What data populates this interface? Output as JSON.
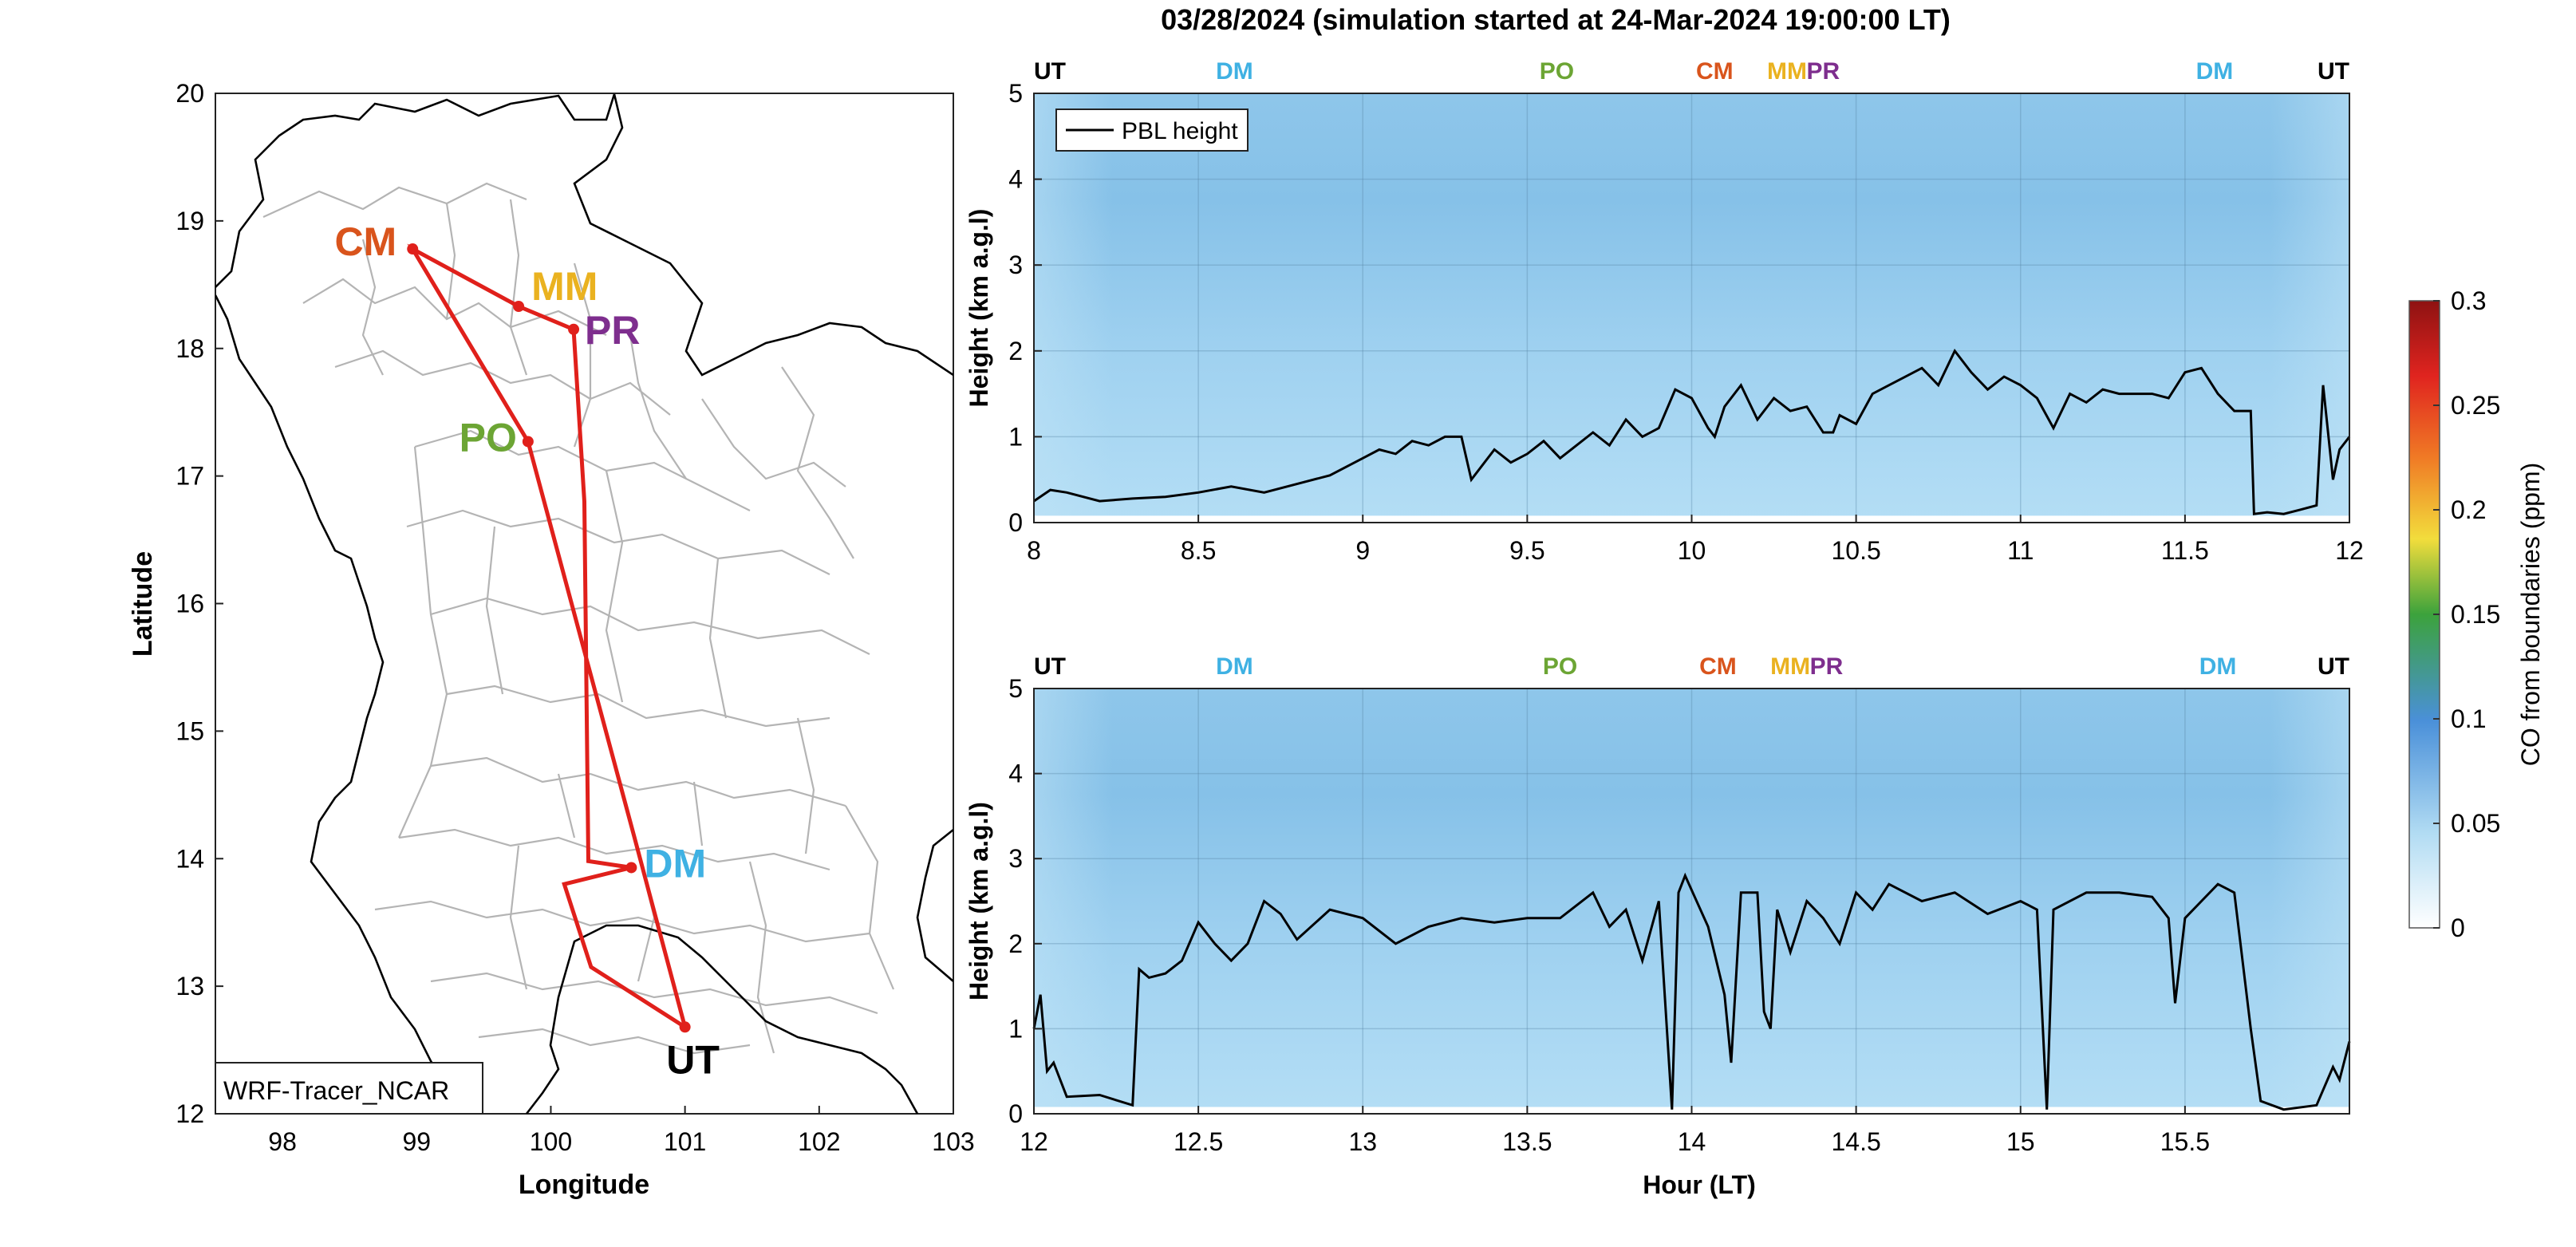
{
  "figure": {
    "title": "03/28/2024 (simulation started at 24-Mar-2024 19:00:00 LT)",
    "watermark": "WRF-Tracer_NCAR"
  },
  "colors": {
    "route": "#e0201b",
    "UT": "#000000",
    "DM": "#3fb1e3",
    "PO": "#6ca534",
    "CM": "#d9541c",
    "MM": "#eab220",
    "PR": "#7e2e8e",
    "pbl": "#000000",
    "field_bg": "#a9d8f2",
    "field_top": "#7fbde6",
    "field_low": "#b6e0f5"
  },
  "chart_data": [
    {
      "type": "scatter",
      "id": "map",
      "xlabel": "Longitude",
      "ylabel": "Latitude",
      "xlim": [
        97.5,
        103
      ],
      "ylim": [
        12,
        20
      ],
      "xticks": [
        98,
        99,
        100,
        101,
        102,
        103
      ],
      "yticks": [
        12,
        13,
        14,
        15,
        16,
        17,
        18,
        19,
        20
      ],
      "grid": false,
      "stations": [
        {
          "label": "CM",
          "lon": 98.97,
          "lat": 18.78
        },
        {
          "label": "MM",
          "lon": 99.76,
          "lat": 18.33
        },
        {
          "label": "PR",
          "lon": 100.17,
          "lat": 18.15
        },
        {
          "label": "PO",
          "lon": 99.83,
          "lat": 17.27
        },
        {
          "label": "DM",
          "lon": 100.6,
          "lat": 13.93
        },
        {
          "label": "UT",
          "lon": 101.0,
          "lat": 12.68
        }
      ],
      "route": [
        {
          "lon": 101.0,
          "lat": 12.68
        },
        {
          "lon": 100.62,
          "lat": 14.18
        },
        {
          "lon": 99.83,
          "lat": 17.27
        },
        {
          "lon": 98.97,
          "lat": 18.78
        },
        {
          "lon": 99.76,
          "lat": 18.33
        },
        {
          "lon": 100.17,
          "lat": 18.15
        },
        {
          "lon": 100.25,
          "lat": 16.8
        },
        {
          "lon": 100.28,
          "lat": 13.98
        },
        {
          "lon": 100.6,
          "lat": 13.93
        },
        {
          "lon": 100.1,
          "lat": 13.8
        },
        {
          "lon": 100.3,
          "lat": 13.15
        },
        {
          "lon": 101.0,
          "lat": 12.68
        }
      ]
    },
    {
      "type": "heatmap",
      "id": "profile-1",
      "xlabel": "",
      "ylabel": "Height (km a.g.l)",
      "xlim": [
        8,
        12
      ],
      "ylim": [
        0,
        5
      ],
      "xticks": [
        8,
        8.5,
        9,
        9.5,
        10,
        10.5,
        11,
        11.5,
        12
      ],
      "xtick_labels": [
        "8",
        "8.5",
        "9",
        "9.5",
        "10",
        "10.5",
        "11",
        "11.5",
        "12"
      ],
      "yticks": [
        0,
        1,
        2,
        3,
        4,
        5
      ],
      "legend": {
        "label": "PBL height",
        "position": "top-left"
      },
      "site_markers": [
        {
          "label": "UT",
          "x": 8.0
        },
        {
          "label": "DM",
          "x": 8.61
        },
        {
          "label": "PO",
          "x": 9.59
        },
        {
          "label": "CM",
          "x": 10.07
        },
        {
          "label": "MM",
          "x": 10.29
        },
        {
          "label": "PR",
          "x": 10.4
        },
        {
          "label": "DM",
          "x": 11.59
        },
        {
          "label": "UT",
          "x": 12.0
        }
      ],
      "series": [
        {
          "x": [
            8.0,
            8.05,
            8.1,
            8.2,
            8.3,
            8.4,
            8.5,
            8.6,
            8.7,
            8.8,
            8.9,
            9.0,
            9.05,
            9.1,
            9.15,
            9.2,
            9.25,
            9.3,
            9.33,
            9.4,
            9.45,
            9.5,
            9.55,
            9.6,
            9.65,
            9.7,
            9.75,
            9.8,
            9.85,
            9.9,
            9.95,
            10.0,
            10.05,
            10.07,
            10.1,
            10.15,
            10.2,
            10.25,
            10.3,
            10.35,
            10.4,
            10.43,
            10.45,
            10.5,
            10.55,
            10.6,
            10.65,
            10.7,
            10.75,
            10.8,
            10.85,
            10.9,
            10.95,
            11.0,
            11.05,
            11.1,
            11.15,
            11.2,
            11.25,
            11.3,
            11.4,
            11.45,
            11.5,
            11.55,
            11.6,
            11.65,
            11.7,
            11.71,
            11.75,
            11.8,
            11.85,
            11.9,
            11.92,
            11.95,
            11.97,
            12.0
          ],
          "y": [
            0.25,
            0.38,
            0.35,
            0.25,
            0.28,
            0.3,
            0.35,
            0.42,
            0.35,
            0.45,
            0.55,
            0.75,
            0.85,
            0.8,
            0.95,
            0.9,
            1.0,
            1.0,
            0.5,
            0.85,
            0.7,
            0.8,
            0.95,
            0.75,
            0.9,
            1.05,
            0.9,
            1.2,
            1.0,
            1.1,
            1.55,
            1.45,
            1.1,
            1.0,
            1.35,
            1.6,
            1.2,
            1.45,
            1.3,
            1.35,
            1.05,
            1.05,
            1.25,
            1.15,
            1.5,
            1.6,
            1.7,
            1.8,
            1.6,
            2.0,
            1.75,
            1.55,
            1.7,
            1.6,
            1.45,
            1.1,
            1.5,
            1.4,
            1.55,
            1.5,
            1.5,
            1.45,
            1.75,
            1.8,
            1.5,
            1.3,
            1.3,
            0.1,
            0.12,
            0.1,
            0.15,
            0.2,
            1.6,
            0.5,
            0.85,
            1.0
          ]
        }
      ]
    },
    {
      "type": "heatmap",
      "id": "profile-2",
      "xlabel": "Hour (LT)",
      "ylabel": "Height (km a.g.l)",
      "xlim": [
        12,
        16
      ],
      "ylim": [
        0,
        5
      ],
      "xticks": [
        12,
        12.5,
        13,
        13.5,
        14,
        14.5,
        15,
        15.5
      ],
      "xtick_labels": [
        "12",
        "12.5",
        "13",
        "13.5",
        "14",
        "14.5",
        "15",
        "15.5"
      ],
      "yticks": [
        0,
        1,
        2,
        3,
        4,
        5
      ],
      "site_markers": [
        {
          "label": "UT",
          "x": 12.0
        },
        {
          "label": "DM",
          "x": 12.61
        },
        {
          "label": "PO",
          "x": 13.6
        },
        {
          "label": "CM",
          "x": 14.08
        },
        {
          "label": "MM",
          "x": 14.3
        },
        {
          "label": "PR",
          "x": 14.41
        },
        {
          "label": "DM",
          "x": 15.6
        },
        {
          "label": "UT",
          "x": 16.0
        }
      ],
      "series": [
        {
          "x": [
            12.0,
            12.02,
            12.04,
            12.06,
            12.1,
            12.2,
            12.3,
            12.32,
            12.35,
            12.4,
            12.45,
            12.5,
            12.55,
            12.6,
            12.65,
            12.7,
            12.75,
            12.8,
            12.9,
            13.0,
            13.1,
            13.2,
            13.3,
            13.4,
            13.5,
            13.6,
            13.7,
            13.75,
            13.8,
            13.85,
            13.9,
            13.94,
            13.96,
            13.98,
            14.05,
            14.1,
            14.12,
            14.15,
            14.2,
            14.22,
            14.24,
            14.26,
            14.3,
            14.35,
            14.4,
            14.45,
            14.5,
            14.55,
            14.6,
            14.7,
            14.8,
            14.9,
            15.0,
            15.05,
            15.08,
            15.1,
            15.2,
            15.3,
            15.4,
            15.45,
            15.47,
            15.5,
            15.55,
            15.6,
            15.65,
            15.7,
            15.73,
            15.8,
            15.9,
            15.95,
            15.97,
            16.0
          ],
          "y": [
            1.0,
            1.4,
            0.5,
            0.6,
            0.2,
            0.22,
            0.1,
            1.7,
            1.6,
            1.65,
            1.8,
            2.25,
            2.0,
            1.8,
            2.0,
            2.5,
            2.35,
            2.05,
            2.4,
            2.3,
            2.0,
            2.2,
            2.3,
            2.25,
            2.3,
            2.3,
            2.6,
            2.2,
            2.4,
            1.8,
            2.5,
            0.05,
            2.6,
            2.8,
            2.2,
            1.4,
            0.6,
            2.6,
            2.6,
            1.2,
            1.0,
            2.4,
            1.9,
            2.5,
            2.3,
            2.0,
            2.6,
            2.4,
            2.7,
            2.5,
            2.6,
            2.35,
            2.5,
            2.4,
            0.05,
            2.4,
            2.6,
            2.6,
            2.55,
            2.3,
            1.3,
            2.3,
            2.5,
            2.7,
            2.6,
            1.0,
            0.15,
            0.05,
            0.1,
            0.55,
            0.4,
            0.85
          ]
        }
      ]
    },
    {
      "type": "heatmap",
      "id": "colorbar",
      "ylabel": "CO from boundaries (ppm)",
      "ylim": [
        0,
        0.3
      ],
      "yticks": [
        0,
        0.05,
        0.1,
        0.15,
        0.2,
        0.25,
        0.3
      ],
      "ytick_labels": [
        "0",
        "0.05",
        "0.1",
        "0.15",
        "0.2",
        "0.25",
        "0.3"
      ],
      "colormap": [
        "#ffffff",
        "#b2dcf3",
        "#4a90d9",
        "#3ca23c",
        "#f2dd3c",
        "#f07a25",
        "#e0241f",
        "#8e1212"
      ]
    }
  ]
}
